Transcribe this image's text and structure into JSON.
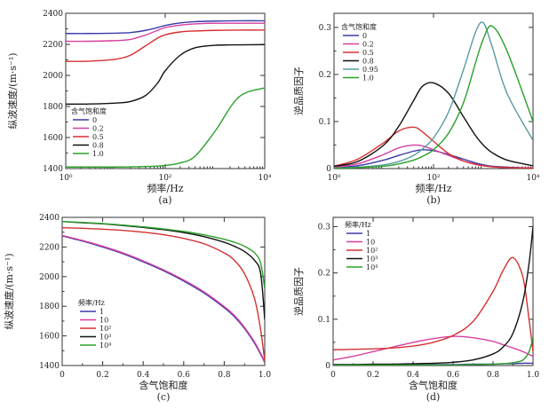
{
  "chart_data": [
    {
      "id": "a",
      "type": "line",
      "caption": "(a)",
      "xlabel": "频率/Hz",
      "ylabel": "纵波速度/(m·s⁻¹)",
      "xscale": "log",
      "xlim": [
        1,
        10000
      ],
      "ylim": [
        1400,
        2400
      ],
      "xticks": [
        1,
        100,
        10000
      ],
      "xtick_labels": [
        "10⁰",
        "10²",
        "10⁴"
      ],
      "yticks": [
        1400,
        1600,
        1800,
        2000,
        2200,
        2400
      ],
      "ytick_labels": [
        "1400",
        "1600",
        "1800",
        "2000",
        "2200",
        "2400"
      ],
      "legend_title": "含气饱和度",
      "legend_position": "lower-left",
      "x": [
        1,
        3,
        10,
        20,
        40,
        70,
        100,
        200,
        400,
        1000,
        3000,
        10000
      ],
      "series": [
        {
          "name": "0",
          "color": "#3a3aa8",
          "values": [
            2270,
            2270,
            2272,
            2276,
            2290,
            2308,
            2322,
            2338,
            2346,
            2350,
            2352,
            2352
          ]
        },
        {
          "name": "0.2",
          "color": "#d63fa0",
          "values": [
            2220,
            2220,
            2224,
            2232,
            2260,
            2290,
            2308,
            2324,
            2332,
            2336,
            2336,
            2336
          ]
        },
        {
          "name": "0.5",
          "color": "#d63030",
          "values": [
            2090,
            2092,
            2104,
            2130,
            2190,
            2240,
            2262,
            2280,
            2286,
            2290,
            2292,
            2292
          ]
        },
        {
          "name": "0.8",
          "color": "#111111",
          "values": [
            1815,
            1816,
            1822,
            1832,
            1870,
            1950,
            2030,
            2130,
            2178,
            2194,
            2197,
            2198
          ]
        },
        {
          "name": "1.0",
          "color": "#2aa02a",
          "values": [
            1410,
            1410,
            1410,
            1411,
            1413,
            1416,
            1420,
            1436,
            1480,
            1640,
            1860,
            1920
          ]
        }
      ]
    },
    {
      "id": "b",
      "type": "line",
      "caption": "(b)",
      "xlabel": "频率/Hz",
      "ylabel": "逆品质因子",
      "xscale": "log",
      "xlim": [
        1,
        10000
      ],
      "ylim": [
        0,
        0.33
      ],
      "xticks": [
        1,
        100,
        10000
      ],
      "xtick_labels": [
        "10⁰",
        "10²",
        "10⁴"
      ],
      "yticks": [
        0,
        0.1,
        0.2,
        0.3
      ],
      "ytick_labels": [
        "0",
        "0.1",
        "0.2",
        "0.3"
      ],
      "legend_title": "含气饱和度",
      "legend_position": "top-left",
      "x": [
        1,
        3,
        10,
        20,
        40,
        60,
        100,
        200,
        400,
        700,
        1000,
        1500,
        3000,
        10000
      ],
      "series": [
        {
          "name": "0",
          "color": "#3a3aa8",
          "values": [
            0.002,
            0.006,
            0.018,
            0.028,
            0.037,
            0.04,
            0.038,
            0.03,
            0.02,
            0.012,
            0.008,
            0.005,
            0.003,
            0.001
          ]
        },
        {
          "name": "0.2",
          "color": "#d63fa0",
          "values": [
            0.003,
            0.01,
            0.03,
            0.044,
            0.05,
            0.048,
            0.04,
            0.028,
            0.016,
            0.009,
            0.006,
            0.004,
            0.002,
            0.001
          ]
        },
        {
          "name": "0.5",
          "color": "#d63030",
          "values": [
            0.005,
            0.02,
            0.055,
            0.08,
            0.088,
            0.078,
            0.058,
            0.032,
            0.016,
            0.009,
            0.006,
            0.004,
            0.002,
            0.001
          ]
        },
        {
          "name": "0.8",
          "color": "#111111",
          "values": [
            0.005,
            0.015,
            0.05,
            0.09,
            0.145,
            0.175,
            0.182,
            0.16,
            0.11,
            0.07,
            0.05,
            0.034,
            0.018,
            0.006
          ]
        },
        {
          "name": "0.95",
          "color": "#5a9aa0",
          "values": [
            0.001,
            0.003,
            0.008,
            0.015,
            0.028,
            0.042,
            0.065,
            0.12,
            0.21,
            0.29,
            0.31,
            0.26,
            0.16,
            0.06
          ]
        },
        {
          "name": "1.0",
          "color": "#2aa02a",
          "values": [
            0.001,
            0.002,
            0.005,
            0.01,
            0.018,
            0.026,
            0.04,
            0.075,
            0.14,
            0.225,
            0.275,
            0.303,
            0.25,
            0.1
          ]
        }
      ]
    },
    {
      "id": "c",
      "type": "line",
      "caption": "(c)",
      "xlabel": "含气饱和度",
      "ylabel": "纵波速度/(m·s⁻¹)",
      "xscale": "linear",
      "xlim": [
        0,
        1.0
      ],
      "ylim": [
        1400,
        2400
      ],
      "xticks": [
        0,
        0.2,
        0.4,
        0.6,
        0.8,
        1.0
      ],
      "xtick_labels": [
        "0",
        "0.2",
        "0.4",
        "0.6",
        "0.8",
        "1.0"
      ],
      "yticks": [
        1400,
        1600,
        1800,
        2000,
        2200,
        2400
      ],
      "ytick_labels": [
        "1400",
        "1600",
        "1800",
        "2000",
        "2200",
        "2400"
      ],
      "legend_title": "频率/Hz",
      "legend_position": "lower-left",
      "x": [
        0,
        0.1,
        0.2,
        0.3,
        0.4,
        0.5,
        0.6,
        0.7,
        0.8,
        0.85,
        0.9,
        0.95,
        0.98,
        1.0
      ],
      "series": [
        {
          "name": "1",
          "color": "#3a3aa8",
          "values": [
            2275,
            2240,
            2200,
            2155,
            2100,
            2040,
            1970,
            1890,
            1790,
            1730,
            1650,
            1550,
            1475,
            1420
          ]
        },
        {
          "name": "10",
          "color": "#d63fa0",
          "values": [
            2278,
            2244,
            2205,
            2160,
            2106,
            2046,
            1977,
            1897,
            1798,
            1738,
            1658,
            1558,
            1482,
            1425
          ]
        },
        {
          "name": "10²",
          "color": "#d63030",
          "values": [
            2330,
            2326,
            2320,
            2312,
            2300,
            2283,
            2258,
            2222,
            2160,
            2110,
            2020,
            1850,
            1640,
            1430
          ]
        },
        {
          "name": "10³",
          "color": "#111111",
          "values": [
            2372,
            2364,
            2356,
            2345,
            2332,
            2317,
            2297,
            2270,
            2232,
            2205,
            2170,
            2110,
            2020,
            1710
          ]
        },
        {
          "name": "10⁴",
          "color": "#2aa02a",
          "values": [
            2372,
            2366,
            2358,
            2348,
            2336,
            2322,
            2305,
            2282,
            2252,
            2232,
            2205,
            2160,
            2090,
            1920
          ]
        }
      ]
    },
    {
      "id": "d",
      "type": "line",
      "caption": "(d)",
      "xlabel": "含气饱和度",
      "ylabel": "逆品质因子",
      "xscale": "linear",
      "xlim": [
        0,
        1.0
      ],
      "ylim": [
        0,
        0.32
      ],
      "xticks": [
        0,
        0.2,
        0.4,
        0.6,
        0.8,
        1.0
      ],
      "xtick_labels": [
        "0",
        "0.2",
        "0.4",
        "0.6",
        "0.8",
        "1.0"
      ],
      "yticks": [
        0,
        0.1,
        0.2,
        0.3
      ],
      "ytick_labels": [
        "0",
        "0.1",
        "0.2",
        "0.3"
      ],
      "legend_title": "频率/Hz",
      "legend_position": "top-left",
      "x": [
        0,
        0.1,
        0.2,
        0.3,
        0.4,
        0.5,
        0.6,
        0.7,
        0.8,
        0.85,
        0.9,
        0.95,
        0.98,
        1.0
      ],
      "series": [
        {
          "name": "1",
          "color": "#3a3aa8",
          "values": [
            0.002,
            0.002,
            0.002,
            0.002,
            0.002,
            0.002,
            0.002,
            0.003,
            0.003,
            0.004,
            0.004,
            0.005,
            0.005,
            0.005
          ]
        },
        {
          "name": "10",
          "color": "#d63fa0",
          "values": [
            0.012,
            0.02,
            0.03,
            0.04,
            0.05,
            0.058,
            0.063,
            0.06,
            0.052,
            0.045,
            0.038,
            0.03,
            0.024,
            0.02
          ]
        },
        {
          "name": "10²",
          "color": "#d63030",
          "values": [
            0.034,
            0.035,
            0.036,
            0.038,
            0.042,
            0.05,
            0.065,
            0.095,
            0.16,
            0.205,
            0.233,
            0.19,
            0.1,
            0.03
          ]
        },
        {
          "name": "10³",
          "color": "#111111",
          "values": [
            0.002,
            0.002,
            0.003,
            0.003,
            0.004,
            0.005,
            0.007,
            0.012,
            0.025,
            0.04,
            0.07,
            0.14,
            0.22,
            0.3
          ]
        },
        {
          "name": "10⁴",
          "color": "#2aa02a",
          "values": [
            0.001,
            0.001,
            0.001,
            0.001,
            0.001,
            0.001,
            0.001,
            0.002,
            0.003,
            0.004,
            0.006,
            0.012,
            0.03,
            0.06
          ]
        }
      ]
    }
  ]
}
